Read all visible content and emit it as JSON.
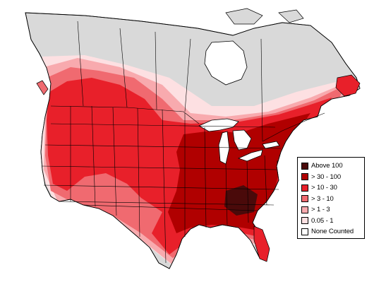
{
  "legend": {
    "items": [
      {
        "label": "Above 100",
        "color": "#4a0a0a"
      },
      {
        "label": "> 30 - 100",
        "color": "#b00000"
      },
      {
        "label": "> 10 - 30",
        "color": "#e8202a"
      },
      {
        "label": "> 3 - 10",
        "color": "#f06a70"
      },
      {
        "label": "> 1 - 3",
        "color": "#f8aaae"
      },
      {
        "label": "0.05 - 1",
        "color": "#fde0e2"
      },
      {
        "label": "None Counted",
        "color": "#ffffff"
      }
    ]
  },
  "colors": {
    "not_surveyed": "#d9d9d9",
    "boundary": "#000000",
    "water": "#ffffff"
  },
  "icons": [
    "north-america-map",
    "great-lakes",
    "legend-swatch"
  ]
}
